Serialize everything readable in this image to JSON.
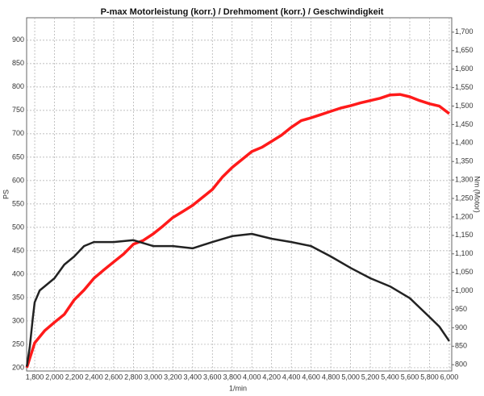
{
  "chart_data": {
    "type": "line",
    "title": "P-max Motorleistung (korr.) / Drehmoment (korr.) / Geschwindigkeit",
    "xlabel": "1/min",
    "ylabel": "PS",
    "y2label": "Nm (Motor)",
    "grid": true,
    "xlim": [
      1718,
      6025
    ],
    "ylim": [
      193,
      948
    ],
    "y2lim": [
      783,
      1739
    ],
    "xticks": [
      {
        "value": 1800,
        "label": "1,800"
      },
      {
        "value": 2000,
        "label": "2,000"
      },
      {
        "value": 2200,
        "label": "2,200"
      },
      {
        "value": 2400,
        "label": "2,400"
      },
      {
        "value": 2600,
        "label": "2,600"
      },
      {
        "value": 2800,
        "label": "2,800"
      },
      {
        "value": 3000,
        "label": "3,000"
      },
      {
        "value": 3200,
        "label": "3,200"
      },
      {
        "value": 3400,
        "label": "3,400"
      },
      {
        "value": 3600,
        "label": "3,600"
      },
      {
        "value": 3800,
        "label": "3,800"
      },
      {
        "value": 4000,
        "label": "4,000"
      },
      {
        "value": 4200,
        "label": "4,200"
      },
      {
        "value": 4400,
        "label": "4,400"
      },
      {
        "value": 4600,
        "label": "4,600"
      },
      {
        "value": 4800,
        "label": "4,800"
      },
      {
        "value": 5000,
        "label": "5,000"
      },
      {
        "value": 5200,
        "label": "5,200"
      },
      {
        "value": 5400,
        "label": "5,400"
      },
      {
        "value": 5600,
        "label": "5,600"
      },
      {
        "value": 5800,
        "label": "5,800"
      },
      {
        "value": 6000,
        "label": "6,000"
      }
    ],
    "yticks": [
      200,
      250,
      300,
      350,
      400,
      450,
      500,
      550,
      600,
      650,
      700,
      750,
      800,
      850,
      900
    ],
    "y2ticks": [
      800,
      850,
      900,
      950,
      {
        "value": 1000,
        "label": "1,000"
      },
      {
        "value": 1050,
        "label": "1,050"
      },
      {
        "value": 1100,
        "label": "1,100"
      },
      {
        "value": 1150,
        "label": "1,150"
      },
      {
        "value": 1200,
        "label": "1,200"
      },
      {
        "value": 1250,
        "label": "1,250"
      },
      {
        "value": 1300,
        "label": "1,300"
      },
      {
        "value": 1350,
        "label": "1,350"
      },
      {
        "value": 1400,
        "label": "1,400"
      },
      {
        "value": 1450,
        "label": "1,450"
      },
      {
        "value": 1500,
        "label": "1,500"
      },
      {
        "value": 1550,
        "label": "1,550"
      },
      {
        "value": 1600,
        "label": "1,600"
      },
      {
        "value": 1650,
        "label": "1,650"
      },
      {
        "value": 1700,
        "label": "1,700"
      }
    ],
    "series": [
      {
        "color": "#ff1a1a",
        "x": [
          1720,
          1800,
          1900,
          2000,
          2100,
          2200,
          2300,
          2400,
          2500,
          2600,
          2700,
          2800,
          2900,
          3000,
          3100,
          3200,
          3300,
          3400,
          3500,
          3600,
          3700,
          3800,
          3900,
          4000,
          4100,
          4200,
          4300,
          4400,
          4500,
          4600,
          4700,
          4800,
          4900,
          5000,
          5100,
          5200,
          5300,
          5400,
          5500,
          5600,
          5700,
          5800,
          5900,
          6000
        ],
        "values": [
          200,
          253,
          279,
          297,
          314,
          345,
          366,
          391,
          409,
          426,
          443,
          464,
          472,
          486,
          503,
          521,
          534,
          547,
          564,
          581,
          607,
          628,
          645,
          662,
          671,
          684,
          697,
          714,
          728,
          734,
          741,
          748,
          755,
          760,
          766,
          771,
          776,
          783,
          784,
          779,
          771,
          764,
          759,
          743
        ]
      },
      {
        "color": "#222222",
        "axis": "y2",
        "x": [
          1720,
          1750,
          1780,
          1800,
          1850,
          1900,
          2000,
          2100,
          2200,
          2300,
          2400,
          2600,
          2800,
          3000,
          3200,
          3400,
          3600,
          3800,
          4000,
          4200,
          4400,
          4600,
          4800,
          5000,
          5200,
          5400,
          5600,
          5800,
          5900,
          6000
        ],
        "values": [
          795,
          848,
          925,
          969,
          1001,
          1012,
          1034,
          1071,
          1093,
          1121,
          1132,
          1132,
          1137,
          1121,
          1121,
          1115,
          1132,
          1148,
          1154,
          1141,
          1132,
          1121,
          1093,
          1062,
          1034,
          1012,
          980,
          929,
          903,
          864
        ]
      }
    ]
  }
}
